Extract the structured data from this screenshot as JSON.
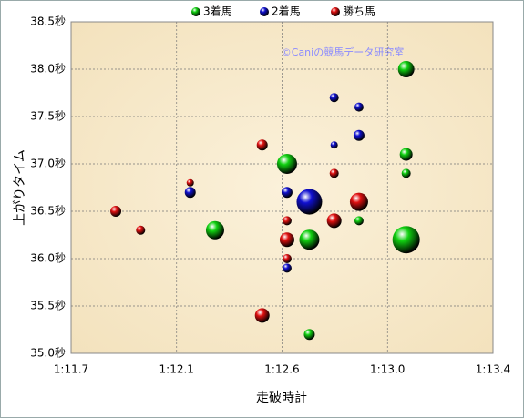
{
  "chart_data": {
    "type": "bubble",
    "title": null,
    "annotation": "©Caniの競馬データ研究室",
    "x_label": "走破時計",
    "y_label": "上がりタイム",
    "xlim": [
      71.7,
      73.4
    ],
    "xticks": [
      {
        "value": 71.7,
        "label": "1:11.7"
      },
      {
        "value": 72.125,
        "label": "1:12.1"
      },
      {
        "value": 72.55,
        "label": "1:12.6"
      },
      {
        "value": 72.975,
        "label": "1:13.0"
      },
      {
        "value": 73.4,
        "label": "1:13.4"
      }
    ],
    "ylim": [
      35.0,
      38.5
    ],
    "yticks": [
      {
        "value": 35.0,
        "label": "35.0秒"
      },
      {
        "value": 35.5,
        "label": "35.5秒"
      },
      {
        "value": 36.0,
        "label": "36.0秒"
      },
      {
        "value": 36.5,
        "label": "36.5秒"
      },
      {
        "value": 37.0,
        "label": "37.0秒"
      },
      {
        "value": 37.5,
        "label": "37.5秒"
      },
      {
        "value": 38.0,
        "label": "38.0秒"
      },
      {
        "value": 38.5,
        "label": "38.5秒"
      }
    ],
    "grid": true,
    "series": [
      {
        "name": "3着馬",
        "color": "#10d010",
        "x": [
          73.05,
          73.05,
          73.05,
          73.05,
          72.57,
          72.66,
          72.28,
          72.86,
          72.66
        ],
        "values": [
          38.0,
          37.1,
          36.9,
          36.2,
          37.0,
          36.2,
          36.3,
          36.4,
          35.2
        ],
        "sizes": [
          9,
          7,
          5,
          15,
          11,
          11,
          10,
          5,
          6
        ]
      },
      {
        "name": "2着馬",
        "color": "#1010d0",
        "x": [
          72.76,
          72.86,
          72.86,
          72.76,
          72.57,
          72.18,
          72.66,
          72.57
        ],
        "values": [
          37.7,
          37.6,
          37.3,
          37.2,
          36.7,
          36.7,
          36.6,
          35.9
        ],
        "sizes": [
          5,
          5,
          6,
          4,
          6,
          6,
          14,
          5
        ]
      },
      {
        "name": "勝ち馬",
        "color": "#e01010",
        "x": [
          72.47,
          72.76,
          72.18,
          72.86,
          71.88,
          71.98,
          72.57,
          72.76,
          72.57,
          72.57,
          72.47
        ],
        "values": [
          37.2,
          36.9,
          36.8,
          36.6,
          36.5,
          36.3,
          36.4,
          36.4,
          36.2,
          36.0,
          35.4
        ],
        "sizes": [
          6,
          5,
          4,
          10,
          6,
          5,
          5,
          8,
          8,
          5,
          8
        ]
      }
    ]
  }
}
